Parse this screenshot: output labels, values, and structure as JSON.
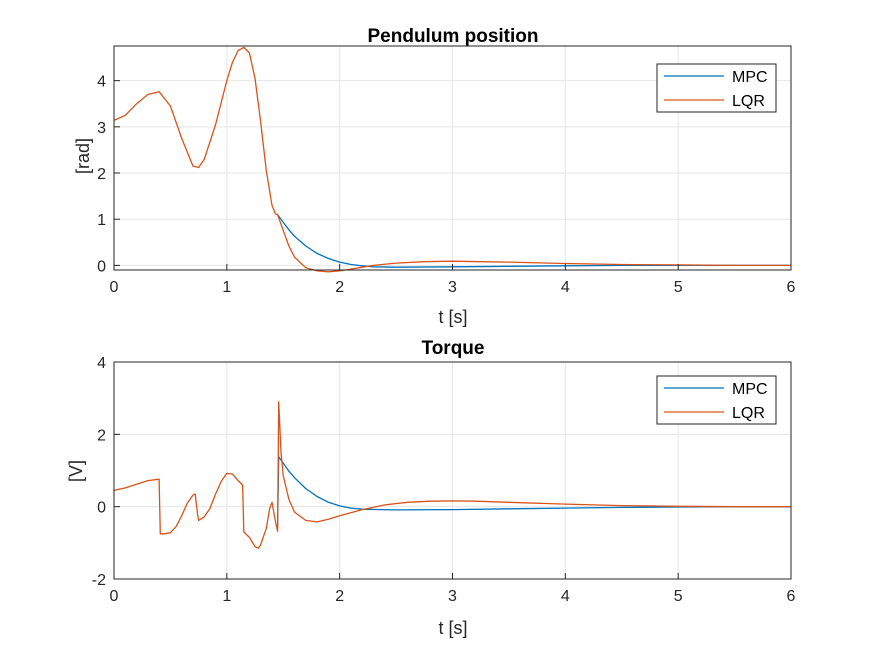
{
  "chart_data": [
    {
      "type": "line",
      "title": "Pendulum position",
      "xlabel": "t [s]",
      "ylabel": "[rad]",
      "xlim": [
        0,
        6
      ],
      "ylim": [
        -0.1,
        4.75
      ],
      "xticks": [
        0,
        1,
        2,
        3,
        4,
        5,
        6
      ],
      "yticks": [
        0,
        1,
        2,
        3,
        4
      ],
      "xtick_labels": [
        "0",
        "1",
        "2",
        "3",
        "4",
        "5",
        "6"
      ],
      "ytick_labels": [
        "0",
        "1",
        "2",
        "3",
        "4"
      ],
      "grid": true,
      "legend_position": "top-right",
      "series": [
        {
          "name": "MPC",
          "color": "#0072BD",
          "x": [
            1.45,
            1.5,
            1.55,
            1.6,
            1.7,
            1.8,
            1.9,
            2.0,
            2.1,
            2.2,
            2.3,
            2.5,
            3.0,
            3.5,
            4.0,
            4.5,
            5.0,
            5.5,
            6.0
          ],
          "y": [
            1.1,
            0.93,
            0.77,
            0.63,
            0.42,
            0.26,
            0.15,
            0.07,
            0.02,
            -0.01,
            -0.03,
            -0.04,
            -0.03,
            -0.02,
            -0.01,
            0.0,
            0.0,
            0.0,
            0.0
          ]
        },
        {
          "name": "LQR",
          "color": "#D95319",
          "x": [
            0,
            0.1,
            0.2,
            0.3,
            0.4,
            0.5,
            0.6,
            0.7,
            0.75,
            0.8,
            0.9,
            1.0,
            1.05,
            1.1,
            1.15,
            1.2,
            1.25,
            1.3,
            1.35,
            1.4,
            1.43,
            1.45,
            1.5,
            1.55,
            1.6,
            1.7,
            1.8,
            1.9,
            2.0,
            2.1,
            2.2,
            2.3,
            2.5,
            2.75,
            3.0,
            3.25,
            3.5,
            4.0,
            4.5,
            5.0,
            5.5,
            6.0
          ],
          "y": [
            3.14,
            3.25,
            3.5,
            3.7,
            3.76,
            3.45,
            2.75,
            2.15,
            2.12,
            2.3,
            3.05,
            4.0,
            4.4,
            4.65,
            4.72,
            4.6,
            4.05,
            3.1,
            2.05,
            1.3,
            1.12,
            1.1,
            0.75,
            0.42,
            0.18,
            -0.05,
            -0.12,
            -0.14,
            -0.12,
            -0.08,
            -0.04,
            0.0,
            0.05,
            0.08,
            0.09,
            0.08,
            0.07,
            0.04,
            0.02,
            0.01,
            0.0,
            0.0
          ]
        }
      ]
    },
    {
      "type": "line",
      "title": "Torque",
      "xlabel": "t [s]",
      "ylabel": "[V]",
      "xlim": [
        0,
        6
      ],
      "ylim": [
        -2,
        4
      ],
      "xticks": [
        0,
        1,
        2,
        3,
        4,
        5,
        6
      ],
      "yticks": [
        -2,
        0,
        2,
        4
      ],
      "xtick_labels": [
        "0",
        "1",
        "2",
        "3",
        "4",
        "5",
        "6"
      ],
      "ytick_labels": [
        "-2",
        "0",
        "2",
        "4"
      ],
      "grid": true,
      "legend_position": "top-right",
      "series": [
        {
          "name": "MPC",
          "color": "#0072BD",
          "x": [
            1.45,
            1.46,
            1.5,
            1.55,
            1.6,
            1.7,
            1.8,
            1.9,
            2.0,
            2.1,
            2.2,
            2.5,
            3.0,
            3.5,
            4.0,
            4.5,
            5.0,
            5.5,
            6.0
          ],
          "y": [
            -0.5,
            1.38,
            1.2,
            0.98,
            0.8,
            0.5,
            0.28,
            0.12,
            0.02,
            -0.04,
            -0.07,
            -0.09,
            -0.08,
            -0.06,
            -0.04,
            -0.02,
            -0.01,
            0.0,
            0.0
          ]
        },
        {
          "name": "LQR",
          "color": "#D95319",
          "x": [
            0,
            0.1,
            0.2,
            0.3,
            0.4,
            0.41,
            0.45,
            0.5,
            0.55,
            0.6,
            0.65,
            0.7,
            0.72,
            0.74,
            0.75,
            0.8,
            0.85,
            0.9,
            0.95,
            1.0,
            1.05,
            1.1,
            1.14,
            1.15,
            1.2,
            1.25,
            1.28,
            1.3,
            1.35,
            1.38,
            1.4,
            1.43,
            1.45,
            1.46,
            1.48,
            1.5,
            1.55,
            1.6,
            1.7,
            1.8,
            1.9,
            2.0,
            2.2,
            2.4,
            2.6,
            2.8,
            3.0,
            3.2,
            3.5,
            4.0,
            4.5,
            5.0,
            5.5,
            6.0
          ],
          "y": [
            0.45,
            0.52,
            0.62,
            0.72,
            0.76,
            -0.75,
            -0.75,
            -0.72,
            -0.55,
            -0.25,
            0.1,
            0.32,
            0.35,
            -0.2,
            -0.38,
            -0.28,
            -0.05,
            0.35,
            0.7,
            0.92,
            0.9,
            0.72,
            0.6,
            -0.7,
            -0.85,
            -1.1,
            -1.15,
            -1.05,
            -0.6,
            -0.05,
            0.12,
            -0.4,
            -0.68,
            2.9,
            1.5,
            0.85,
            0.2,
            -0.15,
            -0.38,
            -0.42,
            -0.35,
            -0.25,
            -0.08,
            0.05,
            0.12,
            0.15,
            0.16,
            0.15,
            0.12,
            0.07,
            0.03,
            0.01,
            0.0,
            0.0
          ]
        }
      ]
    }
  ]
}
